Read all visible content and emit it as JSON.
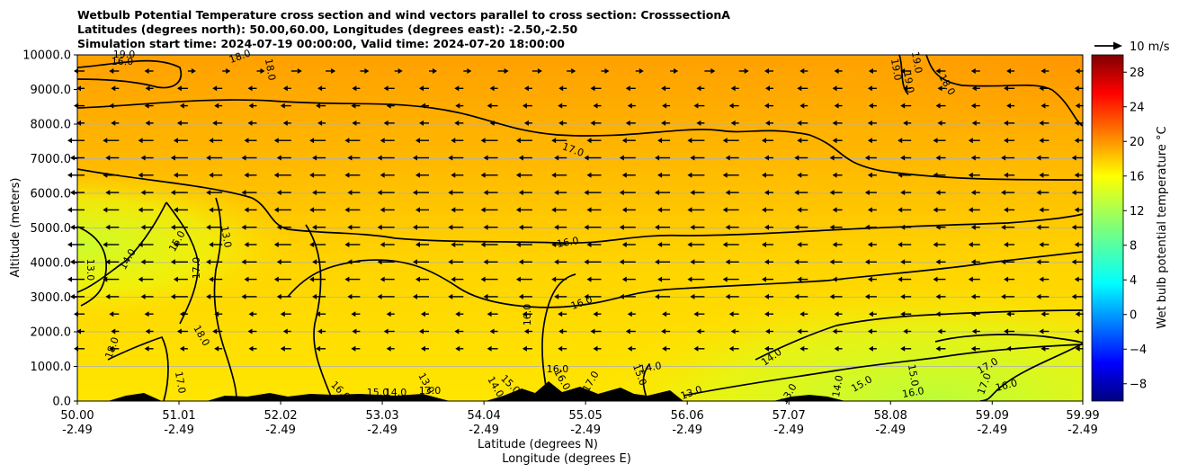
{
  "title_lines": [
    "Wetbulb Potential Temperature cross section and wind vectors parallel to cross section: CrosssectionA",
    "Latitudes (degrees north): 50.00,60.00, Longitudes (degrees east): -2.50,-2.50",
    "Simulation start time: 2024-07-19 00:00:00, Valid time: 2024-07-20 18:00:00"
  ],
  "chart_data": {
    "type": "heatmap",
    "title": "Wetbulb Potential Temperature cross section and wind vectors parallel to cross section: CrosssectionA",
    "ylabel": "Altitude (meters)",
    "xlabel_lines": [
      "Latitude (degrees N)",
      "Longitude (degrees E)"
    ],
    "x_tick_labels": [
      [
        "50.00",
        "-2.49"
      ],
      [
        "51.01",
        "-2.49"
      ],
      [
        "52.02",
        "-2.49"
      ],
      [
        "53.03",
        "-2.49"
      ],
      [
        "54.04",
        "-2.49"
      ],
      [
        "55.05",
        "-2.49"
      ],
      [
        "56.06",
        "-2.49"
      ],
      [
        "57.07",
        "-2.49"
      ],
      [
        "58.08",
        "-2.49"
      ],
      [
        "59.09",
        "-2.49"
      ],
      [
        "59.99",
        "-2.49"
      ]
    ],
    "x_range": [
      50.0,
      59.99
    ],
    "y_ticks": [
      "0.0",
      "1000.0",
      "2000.0",
      "3000.0",
      "4000.0",
      "5000.0",
      "6000.0",
      "7000.0",
      "8000.0",
      "9000.0",
      "10000.0"
    ],
    "y_range": [
      0,
      10000
    ],
    "grid": "horizontal",
    "colorbar": {
      "label": "Wet bulb potential temperature °C",
      "ticks": [
        "−8",
        "−4",
        "0",
        "4",
        "8",
        "12",
        "16",
        "20",
        "24",
        "28"
      ],
      "range": [
        -10,
        30
      ],
      "colormap": "jet"
    },
    "quiver_key": "10 m/s",
    "contour_labels": [
      "19.0",
      "18.0",
      "18.0",
      "19.0",
      "19.0",
      "19.0",
      "18.0",
      "17.0",
      "16.0",
      "16.0",
      "16.0",
      "15.0",
      "14.0",
      "13.0",
      "13.0",
      "14.0",
      "15.0",
      "16.0",
      "17.0",
      "17.0",
      "16.0",
      "15.0",
      "14.0",
      "13.0",
      "13.0",
      "14.0",
      "15.0",
      "16.0",
      "17.0",
      "18.0",
      "18.0",
      "17.0",
      "16.0",
      "15.0",
      "14.0",
      "13.0",
      "13.0",
      "14.0",
      "15.0",
      "16.0",
      "17.0",
      "16.0"
    ]
  }
}
